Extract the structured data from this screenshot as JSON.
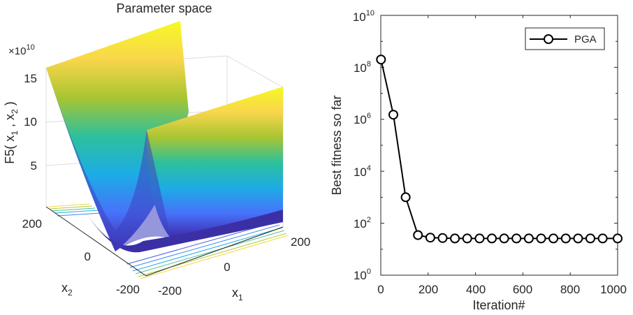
{
  "chart_data": [
    {
      "type": "surface",
      "title": "Parameter space",
      "xlabel": "x",
      "xlabel_sub": "1",
      "ylabel": "x",
      "ylabel_sub": "2",
      "zlabel": {
        "a": "F5( x",
        "s1": "1",
        "b": " , x",
        "s2": "2",
        "c": " )"
      },
      "x_ticks": [
        "-200",
        "0",
        "200"
      ],
      "y_ticks": [
        "-200",
        "0",
        "200"
      ],
      "z_ticks": [
        "5",
        "10",
        "15"
      ],
      "z_exponent": {
        "base": "×10",
        "power": "10"
      },
      "xlim": [
        -200,
        200
      ],
      "ylim": [
        -200,
        200
      ],
      "zlim": [
        0,
        16
      ],
      "colormap": [
        "#3e26a8",
        "#4772fa",
        "#1dace6",
        "#2dc09d",
        "#a8c532",
        "#f9d64b",
        "#f5f924"
      ]
    },
    {
      "type": "line",
      "scale": "log",
      "xlabel": "Iteration#",
      "ylabel": "Best fitness so far",
      "xlim": [
        0,
        1000
      ],
      "ylim_exp": [
        0,
        10
      ],
      "x_ticks": [
        "0",
        "200",
        "400",
        "600",
        "800",
        "1000"
      ],
      "y_ticks": [
        {
          "base": "10",
          "exp": "0"
        },
        {
          "base": "10",
          "exp": "2"
        },
        {
          "base": "10",
          "exp": "4"
        },
        {
          "base": "10",
          "exp": "6"
        },
        {
          "base": "10",
          "exp": "8"
        },
        {
          "base": "10",
          "exp": "10"
        }
      ],
      "legend": {
        "position": "top-right"
      },
      "series": [
        {
          "name": "PGA",
          "color": "#000000",
          "x": [
            1,
            53,
            105,
            157,
            209,
            261,
            313,
            365,
            417,
            469,
            521,
            573,
            625,
            677,
            729,
            781,
            833,
            885,
            937,
            1000
          ],
          "y": [
            200000000,
            1500000,
            1000,
            35,
            28,
            27,
            26,
            26,
            26,
            26,
            26,
            26,
            26,
            26,
            26,
            26,
            26,
            26,
            26,
            26
          ]
        }
      ]
    }
  ]
}
